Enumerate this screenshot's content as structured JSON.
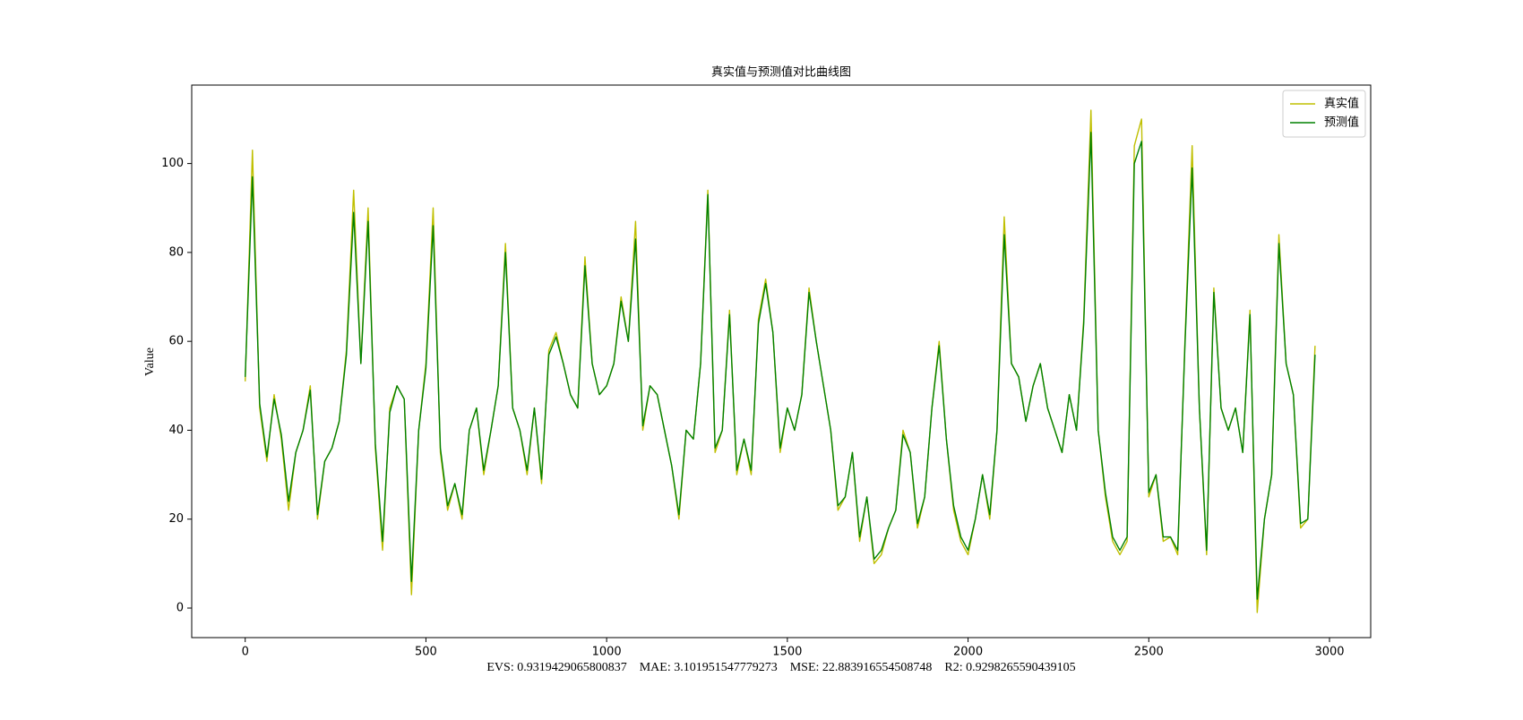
{
  "chart_data": {
    "type": "line",
    "title": "真实值与预测值对比曲线图",
    "xlabel": "EVS: 0.9319429065800837    MAE: 3.101951547779273    MSE: 22.883916554508748    R2: 0.9298265590439105",
    "ylabel": "Value",
    "legend": "upper right",
    "grid": false,
    "xlim": [
      -148,
      3114
    ],
    "ylim": [
      -6.65,
      117.65
    ],
    "xticks": [
      0,
      500,
      1000,
      1500,
      2000,
      2500,
      3000
    ],
    "yticks": [
      0,
      20,
      40,
      60,
      80,
      100
    ],
    "x": [
      0,
      20,
      40,
      60,
      80,
      100,
      120,
      140,
      160,
      180,
      200,
      220,
      240,
      260,
      280,
      300,
      320,
      340,
      360,
      380,
      400,
      420,
      440,
      460,
      480,
      500,
      520,
      540,
      560,
      580,
      600,
      620,
      640,
      660,
      680,
      700,
      720,
      740,
      760,
      780,
      800,
      820,
      840,
      860,
      880,
      900,
      920,
      940,
      960,
      980,
      1000,
      1020,
      1040,
      1060,
      1080,
      1100,
      1120,
      1140,
      1160,
      1180,
      1200,
      1220,
      1240,
      1260,
      1280,
      1300,
      1320,
      1340,
      1360,
      1380,
      1400,
      1420,
      1440,
      1460,
      1480,
      1500,
      1520,
      1540,
      1560,
      1580,
      1600,
      1620,
      1640,
      1660,
      1680,
      1700,
      1720,
      1740,
      1760,
      1780,
      1800,
      1820,
      1840,
      1860,
      1880,
      1900,
      1920,
      1940,
      1960,
      1980,
      2000,
      2020,
      2040,
      2060,
      2080,
      2100,
      2120,
      2140,
      2160,
      2180,
      2200,
      2220,
      2240,
      2260,
      2280,
      2300,
      2320,
      2340,
      2360,
      2380,
      2400,
      2420,
      2440,
      2460,
      2480,
      2500,
      2520,
      2540,
      2560,
      2580,
      2600,
      2620,
      2640,
      2660,
      2680,
      2700,
      2720,
      2740,
      2760,
      2780,
      2800,
      2820,
      2840,
      2860,
      2880,
      2900,
      2920,
      2940,
      2960
    ],
    "series": [
      {
        "name": "真实值",
        "color": "#bfbf00",
        "values": [
          51,
          103,
          45,
          33,
          48,
          38,
          22,
          35,
          40,
          50,
          20,
          33,
          36,
          42,
          58,
          94,
          55,
          90,
          36,
          13,
          45,
          50,
          47,
          3,
          40,
          55,
          90,
          35,
          22,
          28,
          20,
          40,
          45,
          30,
          40,
          50,
          82,
          45,
          40,
          30,
          45,
          28,
          58,
          62,
          55,
          48,
          45,
          79,
          55,
          48,
          50,
          55,
          70,
          60,
          87,
          40,
          50,
          48,
          40,
          32,
          20,
          40,
          38,
          55,
          94,
          35,
          40,
          67,
          30,
          38,
          30,
          65,
          74,
          62,
          35,
          45,
          40,
          48,
          72,
          60,
          50,
          40,
          22,
          25,
          35,
          15,
          25,
          10,
          12,
          18,
          22,
          40,
          35,
          18,
          25,
          45,
          60,
          38,
          22,
          15,
          12,
          20,
          30,
          20,
          40,
          88,
          55,
          52,
          42,
          50,
          55,
          45,
          40,
          35,
          48,
          40,
          65,
          112,
          40,
          25,
          15,
          12,
          15,
          104,
          110,
          25,
          30,
          15,
          16,
          12,
          60,
          104,
          45,
          12,
          72,
          45,
          40,
          45,
          35,
          67,
          -1,
          20,
          30,
          84,
          55,
          48,
          18,
          20,
          59
        ]
      },
      {
        "name": "预测值",
        "color": "#008000",
        "values": [
          52,
          97,
          46,
          34,
          47,
          39,
          24,
          35,
          40,
          49,
          21,
          33,
          36,
          42,
          57,
          89,
          55,
          87,
          37,
          15,
          44,
          50,
          47,
          6,
          40,
          54,
          86,
          36,
          23,
          28,
          21,
          40,
          45,
          31,
          40,
          50,
          80,
          45,
          40,
          31,
          45,
          29,
          57,
          61,
          55,
          48,
          45,
          77,
          55,
          48,
          50,
          55,
          69,
          60,
          83,
          41,
          50,
          48,
          40,
          32,
          21,
          40,
          38,
          55,
          93,
          36,
          40,
          66,
          31,
          38,
          31,
          64,
          73,
          62,
          36,
          45,
          40,
          48,
          71,
          60,
          50,
          40,
          23,
          25,
          35,
          16,
          25,
          11,
          13,
          18,
          22,
          39,
          35,
          19,
          25,
          45,
          59,
          38,
          23,
          16,
          13,
          20,
          30,
          21,
          40,
          84,
          55,
          52,
          42,
          50,
          55,
          45,
          40,
          35,
          48,
          40,
          64,
          107,
          40,
          26,
          16,
          13,
          16,
          100,
          105,
          26,
          30,
          16,
          16,
          13,
          59,
          99,
          45,
          13,
          71,
          45,
          40,
          45,
          35,
          66,
          2,
          20,
          30,
          82,
          55,
          48,
          19,
          20,
          57
        ]
      }
    ]
  }
}
